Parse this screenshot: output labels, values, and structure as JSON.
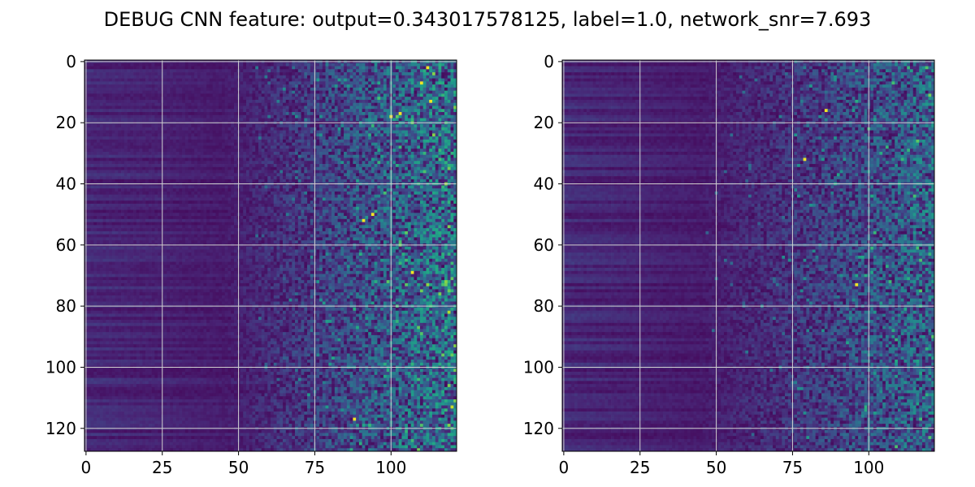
{
  "figure": {
    "title": "DEBUG CNN feature: output=0.343017578125, label=1.0, network_snr=7.693"
  },
  "chart_data": [
    {
      "type": "heatmap",
      "title": "",
      "xlabel": "",
      "ylabel": "",
      "rows": 128,
      "cols": 122,
      "xlim": [
        -0.5,
        121.5
      ],
      "ylim": [
        127.5,
        -0.5
      ],
      "x_ticks": [
        0,
        25,
        50,
        75,
        100
      ],
      "y_ticks": [
        0,
        20,
        40,
        60,
        80,
        100,
        120
      ],
      "grid": true,
      "colormap": "viridis",
      "structure": "dark columns 0-50 with horizontal row banding; increasing speckled intensity for columns > 60; sparse bright yellow hotspots",
      "hotspots": [
        {
          "x": 112,
          "y": 2
        },
        {
          "x": 110,
          "y": 7
        },
        {
          "x": 100,
          "y": 18
        },
        {
          "x": 103,
          "y": 17
        },
        {
          "x": 91,
          "y": 52
        },
        {
          "x": 107,
          "y": 69
        },
        {
          "x": 113,
          "y": 13
        },
        {
          "x": 88,
          "y": 117
        },
        {
          "x": 94,
          "y": 50
        }
      ]
    },
    {
      "type": "heatmap",
      "title": "",
      "xlabel": "",
      "ylabel": "",
      "rows": 128,
      "cols": 122,
      "xlim": [
        -0.5,
        121.5
      ],
      "ylim": [
        127.5,
        -0.5
      ],
      "x_ticks": [
        0,
        25,
        50,
        75,
        100
      ],
      "y_ticks": [
        0,
        20,
        40,
        60,
        80,
        100,
        120
      ],
      "grid": true,
      "colormap": "viridis",
      "structure": "dark columns 0-50 with horizontal row banding; dimmer speckle than left panel for columns > 65; few bright hotspots",
      "hotspots": [
        {
          "x": 86,
          "y": 16
        },
        {
          "x": 79,
          "y": 32
        },
        {
          "x": 96,
          "y": 73
        }
      ]
    }
  ],
  "colors": {
    "background": "#ffffff",
    "grid": "#d0d0d0",
    "viridis": [
      "#440154",
      "#482475",
      "#414487",
      "#355f8d",
      "#2a788e",
      "#21918c",
      "#22a884",
      "#44bf70",
      "#7ad151",
      "#bddf26",
      "#fde725"
    ]
  }
}
